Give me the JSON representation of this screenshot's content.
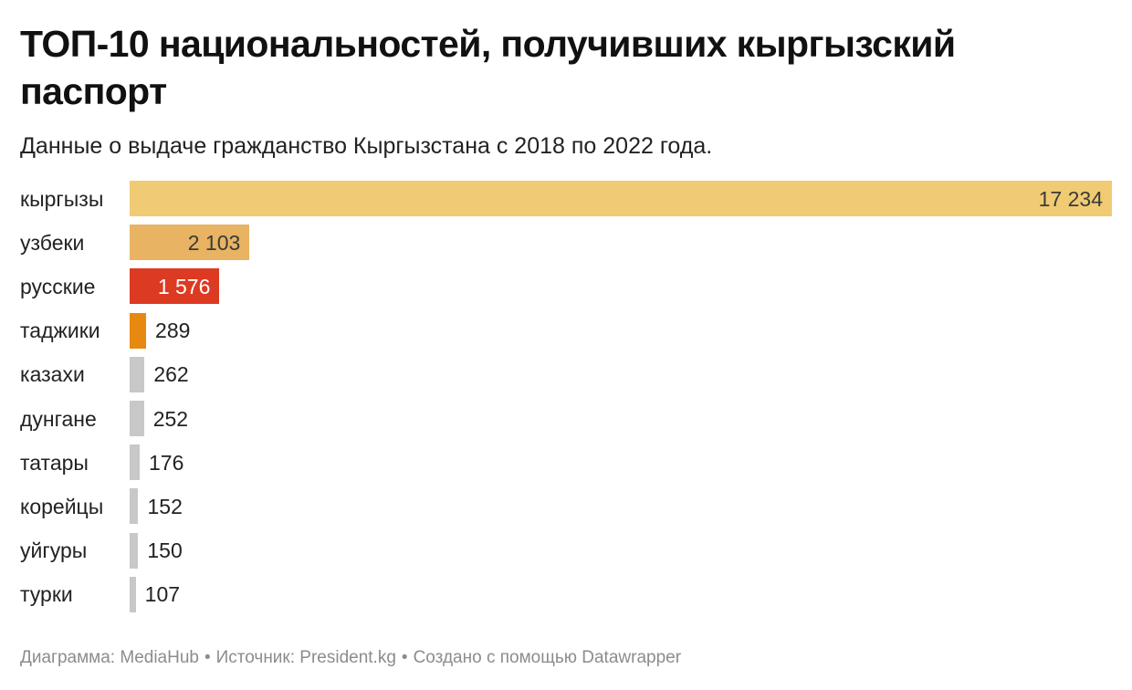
{
  "chart_data": {
    "type": "bar",
    "orientation": "horizontal",
    "title": "ТОП-10 национальностей, получивших кыргызский паспорт",
    "subtitle": "Данные о выдаче гражданство Кыргызстана с 2018 по 2022 года.",
    "categories": [
      "кыргызы",
      "узбеки",
      "русские",
      "таджики",
      "казахи",
      "дунгане",
      "татары",
      "корейцы",
      "уйгуры",
      "турки"
    ],
    "values": [
      17234,
      2103,
      1576,
      289,
      262,
      252,
      176,
      152,
      150,
      107
    ],
    "value_labels": [
      "17 234",
      "2 103",
      "1 576",
      "289",
      "262",
      "252",
      "176",
      "152",
      "150",
      "107"
    ],
    "colors": [
      "#f0cb73",
      "#e8b362",
      "#dc3a22",
      "#e8890f",
      "#c8c8c8",
      "#c8c8c8",
      "#c8c8c8",
      "#c8c8c8",
      "#c8c8c8",
      "#c8c8c8"
    ],
    "xlim": [
      0,
      17234
    ],
    "grid": false,
    "legend": "none"
  },
  "footer": {
    "chart_credit": "Диаграмма: MediaHub",
    "source": "Источник: President.kg",
    "tool": "Создано с помощью Datawrapper",
    "separator": "•"
  }
}
